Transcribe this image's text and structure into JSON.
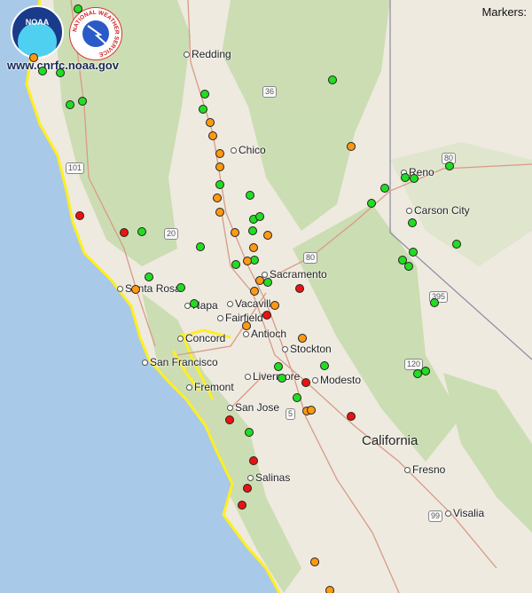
{
  "header": {
    "markers_label": "Markers:",
    "website": "www.cnrfc.noaa.gov",
    "noaa_logo_text": "NOAA",
    "nws_logo_text": "NATIONAL WEATHER SERVICE"
  },
  "map": {
    "state_label": "California",
    "cities": [
      "Redding",
      "Chico",
      "Reno",
      "Carson City",
      "Sacramento",
      "Santa Rosa",
      "Napa",
      "Vacaville",
      "Fairfield",
      "Concord",
      "Antioch",
      "Stockton",
      "San Francisco",
      "Livermore",
      "Modesto",
      "Fremont",
      "San Jose",
      "Fresno",
      "Salinas",
      "Visalia"
    ],
    "highways": [
      "36",
      "101",
      "20",
      "80",
      "5",
      "120",
      "99",
      "395",
      "80"
    ],
    "colors": {
      "ocean": "#a9c9e8",
      "land": "#eeeae0",
      "forest": "#c8dcae",
      "coastline": "#ffee22",
      "marker_green": "#22dd22",
      "marker_orange": "#ff9911",
      "marker_red": "#ee1111"
    }
  }
}
